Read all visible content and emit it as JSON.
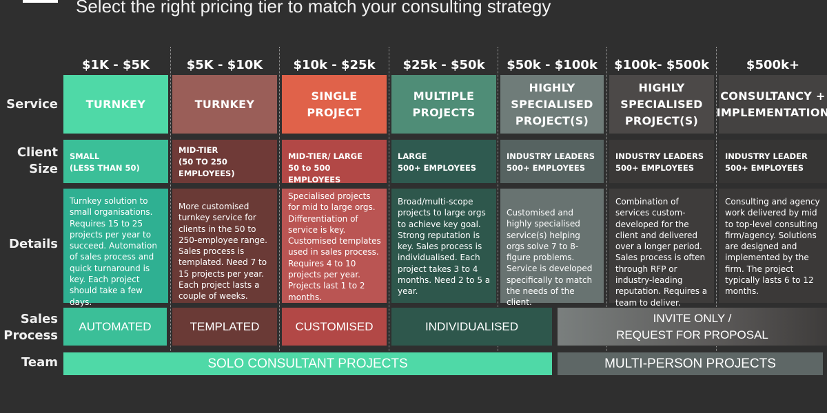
{
  "title": "Select the right pricing tier to match your consulting strategy",
  "row_labels": {
    "service": "Service",
    "client_size": "Client\nSize",
    "details": "Details",
    "sales_process": "Sales\nProcess",
    "team": "Team"
  },
  "colors": {
    "background": "#2f2f2f",
    "tier1_strong": "#4fd9a7",
    "tier1_mid": "#3bbf98",
    "tier1_soft": "#2fb092",
    "tier2_strong": "#9a5e58",
    "tier2_mid": "#6f3a37",
    "tier2_soft": "#6a3a36",
    "tier3_strong": "#e0624a",
    "tier3_mid": "#b24846",
    "tier3_soft": "#ba5553",
    "tier4_strong": "#4f8d77",
    "tier4_mid": "#2f5a50",
    "tier4_soft": "#2e574c",
    "tier5_strong": "#6f7c79",
    "tier5_mid": "#566361",
    "tier5_soft": "#687371",
    "tier6_strong": "#4c4948",
    "tier6_mid": "#3a3837",
    "tier6_soft": "#3e3c3b",
    "tier7_strong": "#444241",
    "tier7_mid": "#363534",
    "tier7_soft": "#3b3938",
    "team_solo": "#4fd9a7",
    "team_multi": "#5e6766"
  },
  "tiers": [
    {
      "price": "$1K - $5K",
      "service": "TURNKEY",
      "client_size": "SMALL\n(LESS THAN 50)",
      "details": "Turnkey solution to small organisations. Requires 15 to 25 projects per year to succeed. Automation of sales process and quick turnaround is key. Each project should take a few days."
    },
    {
      "price": "$5K - $10K",
      "service": "TURNKEY",
      "client_size": "MID-TIER\n(50 TO 250\nEMPLOYEES)",
      "details": "More customised turnkey service for clients in the 50 to 250-employee range. Sales process is templated. Need 7 to 15 projects per year. Each project lasts a couple of weeks."
    },
    {
      "price": "$10k - $25k",
      "service": "SINGLE\nPROJECT",
      "client_size": "MID-TIER/ LARGE\n50 to 500 EMPLOYEES",
      "details": "Specialised projects for mid to large orgs. Differentiation of service is key. Customised templates used in sales process. Requires 4 to 10 projects per year. Projects last 1 to 2 months."
    },
    {
      "price": "$25k - $50k",
      "service": "MULTIPLE\nPROJECTS",
      "client_size": "LARGE\n500+ EMPLOYEES",
      "details": "Broad/multi-scope projects to large orgs to achieve key goal. Strong reputation is key. Sales process is individualised. Each project takes 3 to 4 months. Need 2 to 5 a year."
    },
    {
      "price": "$50k - $100k",
      "service": "HIGHLY\nSPECIALISED\nPROJECT(S)",
      "client_size": "INDUSTRY LEADERS\n500+ EMPLOYEES",
      "details": "Customised and highly specialised service(s) helping orgs solve 7 to 8-figure problems. Service is developed specifically to match the needs of the client."
    },
    {
      "price": "$100k- $500k",
      "service": "HIGHLY\nSPECIALISED\nPROJECT(S)",
      "client_size": "INDUSTRY LEADERS\n500+ EMPLOYEES",
      "details": "Combination of services custom-developed for the client and delivered over a longer period. Sales process is often through RFP or industry-leading reputation. Requires a team to deliver."
    },
    {
      "price": "$500k+",
      "service": "CONSULTANCY +\nIMPLEMENTATION",
      "client_size": "INDUSTRY LEADER\n500+ EMPLOYEES",
      "details": "Consulting and agency work delivered by mid to top-level consulting firm/agency. Solutions are designed and implemented by the firm. The project typically lasts 6 to 12 months."
    }
  ],
  "sales_process": [
    {
      "label": "AUTOMATED"
    },
    {
      "label": "TEMPLATED"
    },
    {
      "label": "CUSTOMISED"
    },
    {
      "label": "INDIVIDUALISED"
    },
    {
      "label": "INVITE ONLY /\nREQUEST FOR PROPOSAL"
    }
  ],
  "team": [
    {
      "label": "SOLO CONSULTANT PROJECTS"
    },
    {
      "label": "MULTI-PERSON PROJECTS"
    }
  ]
}
